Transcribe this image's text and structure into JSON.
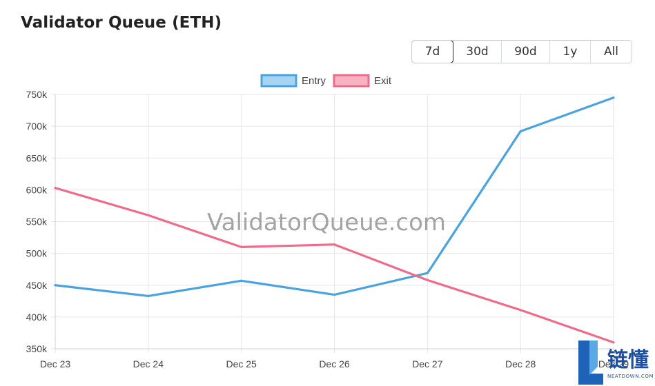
{
  "title": "Validator Queue (ETH)",
  "range_buttons": [
    "7d",
    "30d",
    "90d",
    "1y",
    "All"
  ],
  "active_range": "7d",
  "watermark": "ValidatorQueue.com",
  "logo": {
    "text": "链懂",
    "subtext": "NEATDOWN.COM"
  },
  "colors": {
    "entry": "#4aa3df",
    "exit": "#ef6b8a",
    "entry_fill": "#a7d4f3",
    "exit_fill": "#f7b3c3"
  },
  "chart_data": {
    "type": "line",
    "categories": [
      "Dec 23",
      "Dec 24",
      "Dec 25",
      "Dec 26",
      "Dec 27",
      "Dec 28",
      "Dec 29"
    ],
    "series": [
      {
        "name": "Entry",
        "values": [
          450000,
          433000,
          457000,
          435000,
          469000,
          692000,
          745000
        ]
      },
      {
        "name": "Exit",
        "values": [
          603000,
          560000,
          510000,
          514000,
          458000,
          411000,
          360000
        ]
      }
    ],
    "ylim": [
      350000,
      750000
    ],
    "yticks": [
      350000,
      400000,
      450000,
      500000,
      550000,
      600000,
      650000,
      700000,
      750000
    ],
    "ytick_labels": [
      "350k",
      "400k",
      "450k",
      "500k",
      "550k",
      "600k",
      "650k",
      "700k",
      "750k"
    ],
    "legend": "top-center",
    "grid": true
  }
}
